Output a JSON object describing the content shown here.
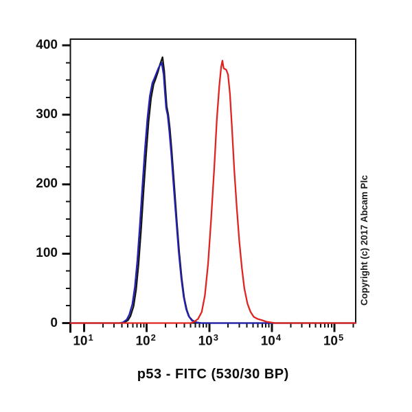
{
  "figure": {
    "background": "#ffffff",
    "frame_color": "#111111"
  },
  "chart_data": {
    "type": "line",
    "title": "",
    "xlabel": "p53 - FITC (530/30 BP)",
    "ylabel": "",
    "copyright": "Copyright (c) 2017 Abcam Plc",
    "x_scale": "log10",
    "x_range_log": [
      0.78,
      5.34
    ],
    "ylim": [
      0,
      409
    ],
    "grid": false,
    "legend": "none",
    "y_major_ticks": [
      0,
      100,
      200,
      300,
      400
    ],
    "y_minor_step": 25,
    "x_major_ticks": [
      {
        "log": 1,
        "base": "10",
        "exp": "1"
      },
      {
        "log": 2,
        "base": "10",
        "exp": "2"
      },
      {
        "log": 3,
        "base": "10",
        "exp": "3"
      },
      {
        "log": 4,
        "base": "10",
        "exp": "4"
      },
      {
        "log": 5,
        "base": "10",
        "exp": "5"
      }
    ],
    "x_minor_subs": [
      2,
      3,
      4,
      5,
      6,
      7,
      8,
      9
    ],
    "series": [
      {
        "name": "black-curve",
        "color": "#141414",
        "peak": {
          "x_log": 2.253,
          "count": 383
        },
        "points": [
          [
            0.78,
            0
          ],
          [
            1.58,
            0
          ],
          [
            1.64,
            1
          ],
          [
            1.7,
            4
          ],
          [
            1.74,
            10
          ],
          [
            1.79,
            24
          ],
          [
            1.83,
            48
          ],
          [
            1.87,
            85
          ],
          [
            1.91,
            135
          ],
          [
            1.95,
            190
          ],
          [
            1.99,
            243
          ],
          [
            2.03,
            290
          ],
          [
            2.07,
            324
          ],
          [
            2.11,
            344
          ],
          [
            2.14,
            351
          ],
          [
            2.18,
            362
          ],
          [
            2.21,
            372
          ],
          [
            2.253,
            383
          ],
          [
            2.28,
            363
          ],
          [
            2.3,
            337
          ],
          [
            2.32,
            312
          ],
          [
            2.345,
            300
          ],
          [
            2.37,
            280
          ],
          [
            2.4,
            248
          ],
          [
            2.44,
            198
          ],
          [
            2.48,
            148
          ],
          [
            2.52,
            102
          ],
          [
            2.56,
            64
          ],
          [
            2.6,
            36
          ],
          [
            2.64,
            19
          ],
          [
            2.68,
            9
          ],
          [
            2.73,
            4
          ],
          [
            2.8,
            1
          ],
          [
            2.87,
            0
          ],
          [
            5.34,
            0
          ]
        ]
      },
      {
        "name": "blue-curve",
        "color": "#2323b0",
        "peak": {
          "x_log": 2.24,
          "count": 375
        },
        "points": [
          [
            0.78,
            0
          ],
          [
            1.56,
            0
          ],
          [
            1.62,
            1
          ],
          [
            1.68,
            5
          ],
          [
            1.72,
            12
          ],
          [
            1.77,
            27
          ],
          [
            1.81,
            52
          ],
          [
            1.85,
            90
          ],
          [
            1.89,
            140
          ],
          [
            1.93,
            196
          ],
          [
            1.97,
            248
          ],
          [
            2.01,
            294
          ],
          [
            2.05,
            327
          ],
          [
            2.09,
            346
          ],
          [
            2.12,
            352
          ],
          [
            2.16,
            361
          ],
          [
            2.19,
            368
          ],
          [
            2.24,
            375
          ],
          [
            2.27,
            358
          ],
          [
            2.29,
            333
          ],
          [
            2.31,
            310
          ],
          [
            2.335,
            299
          ],
          [
            2.36,
            277
          ],
          [
            2.39,
            246
          ],
          [
            2.43,
            198
          ],
          [
            2.47,
            150
          ],
          [
            2.51,
            104
          ],
          [
            2.55,
            66
          ],
          [
            2.59,
            38
          ],
          [
            2.63,
            20
          ],
          [
            2.67,
            10
          ],
          [
            2.72,
            4
          ],
          [
            2.79,
            1
          ],
          [
            2.86,
            0
          ],
          [
            5.34,
            0
          ]
        ]
      },
      {
        "name": "red-curve",
        "color": "#e02420",
        "peak": {
          "x_log": 3.21,
          "count": 378
        },
        "points": [
          [
            0.78,
            0
          ],
          [
            2.7,
            0
          ],
          [
            2.76,
            2
          ],
          [
            2.82,
            6
          ],
          [
            2.88,
            16
          ],
          [
            2.93,
            40
          ],
          [
            2.98,
            85
          ],
          [
            3.03,
            150
          ],
          [
            3.08,
            225
          ],
          [
            3.12,
            292
          ],
          [
            3.16,
            342
          ],
          [
            3.19,
            369
          ],
          [
            3.21,
            378
          ],
          [
            3.23,
            367
          ],
          [
            3.27,
            365
          ],
          [
            3.3,
            358
          ],
          [
            3.33,
            330
          ],
          [
            3.365,
            278
          ],
          [
            3.4,
            220
          ],
          [
            3.44,
            165
          ],
          [
            3.48,
            118
          ],
          [
            3.52,
            80
          ],
          [
            3.56,
            50
          ],
          [
            3.61,
            28
          ],
          [
            3.66,
            16
          ],
          [
            3.71,
            9
          ],
          [
            3.77,
            6
          ],
          [
            3.85,
            4
          ],
          [
            3.91,
            2
          ],
          [
            3.98,
            1
          ],
          [
            4.06,
            0
          ],
          [
            5.34,
            0
          ]
        ]
      }
    ]
  }
}
